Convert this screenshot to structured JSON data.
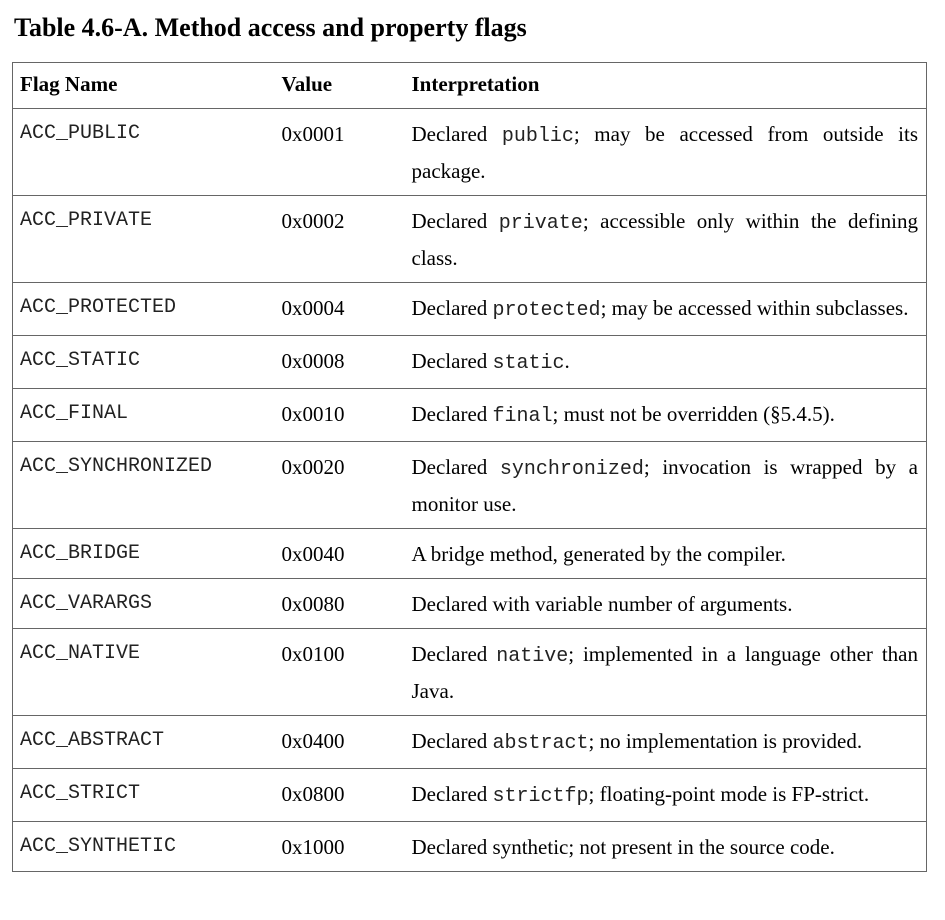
{
  "caption": "Table 4.6-A. Method access and property flags",
  "headers": {
    "flag_name": "Flag Name",
    "value": "Value",
    "interpretation": "Interpretation"
  },
  "rows": [
    {
      "flag": "ACC_PUBLIC",
      "value": "0x0001",
      "interp": {
        "pre": "Declared ",
        "code": "public",
        "post": "; may be accessed from outside its package."
      }
    },
    {
      "flag": "ACC_PRIVATE",
      "value": "0x0002",
      "interp": {
        "pre": "Declared ",
        "code": "private",
        "post": "; accessible only within the defining class."
      }
    },
    {
      "flag": "ACC_PROTECTED",
      "value": "0x0004",
      "interp": {
        "pre": "Declared ",
        "code": "protected",
        "post": "; may be accessed within subclasses."
      }
    },
    {
      "flag": "ACC_STATIC",
      "value": "0x0008",
      "interp": {
        "pre": "Declared ",
        "code": "static",
        "post": "."
      }
    },
    {
      "flag": "ACC_FINAL",
      "value": "0x0010",
      "interp": {
        "pre": "Declared ",
        "code": "final",
        "post": "; must not be overridden (§5.4.5)."
      }
    },
    {
      "flag": "ACC_SYNCHRONIZED",
      "value": "0x0020",
      "interp": {
        "pre": "Declared ",
        "code": "synchronized",
        "post": "; invocation is wrapped by a monitor use."
      }
    },
    {
      "flag": "ACC_BRIDGE",
      "value": "0x0040",
      "interp": {
        "pre": "A bridge method, generated by the compiler.",
        "code": "",
        "post": ""
      }
    },
    {
      "flag": "ACC_VARARGS",
      "value": "0x0080",
      "interp": {
        "pre": "Declared with variable number of arguments.",
        "code": "",
        "post": ""
      }
    },
    {
      "flag": "ACC_NATIVE",
      "value": "0x0100",
      "interp": {
        "pre": "Declared ",
        "code": "native",
        "post": "; implemented in a language other than Java."
      }
    },
    {
      "flag": "ACC_ABSTRACT",
      "value": "0x0400",
      "interp": {
        "pre": "Declared ",
        "code": "abstract",
        "post": "; no implementation is provided."
      }
    },
    {
      "flag": "ACC_STRICT",
      "value": "0x0800",
      "interp": {
        "pre": "Declared ",
        "code": "strictfp",
        "post": "; floating-point mode is FP-strict."
      }
    },
    {
      "flag": "ACC_SYNTHETIC",
      "value": "0x1000",
      "interp": {
        "pre": "Declared synthetic; not present in the source code.",
        "code": "",
        "post": ""
      }
    }
  ]
}
